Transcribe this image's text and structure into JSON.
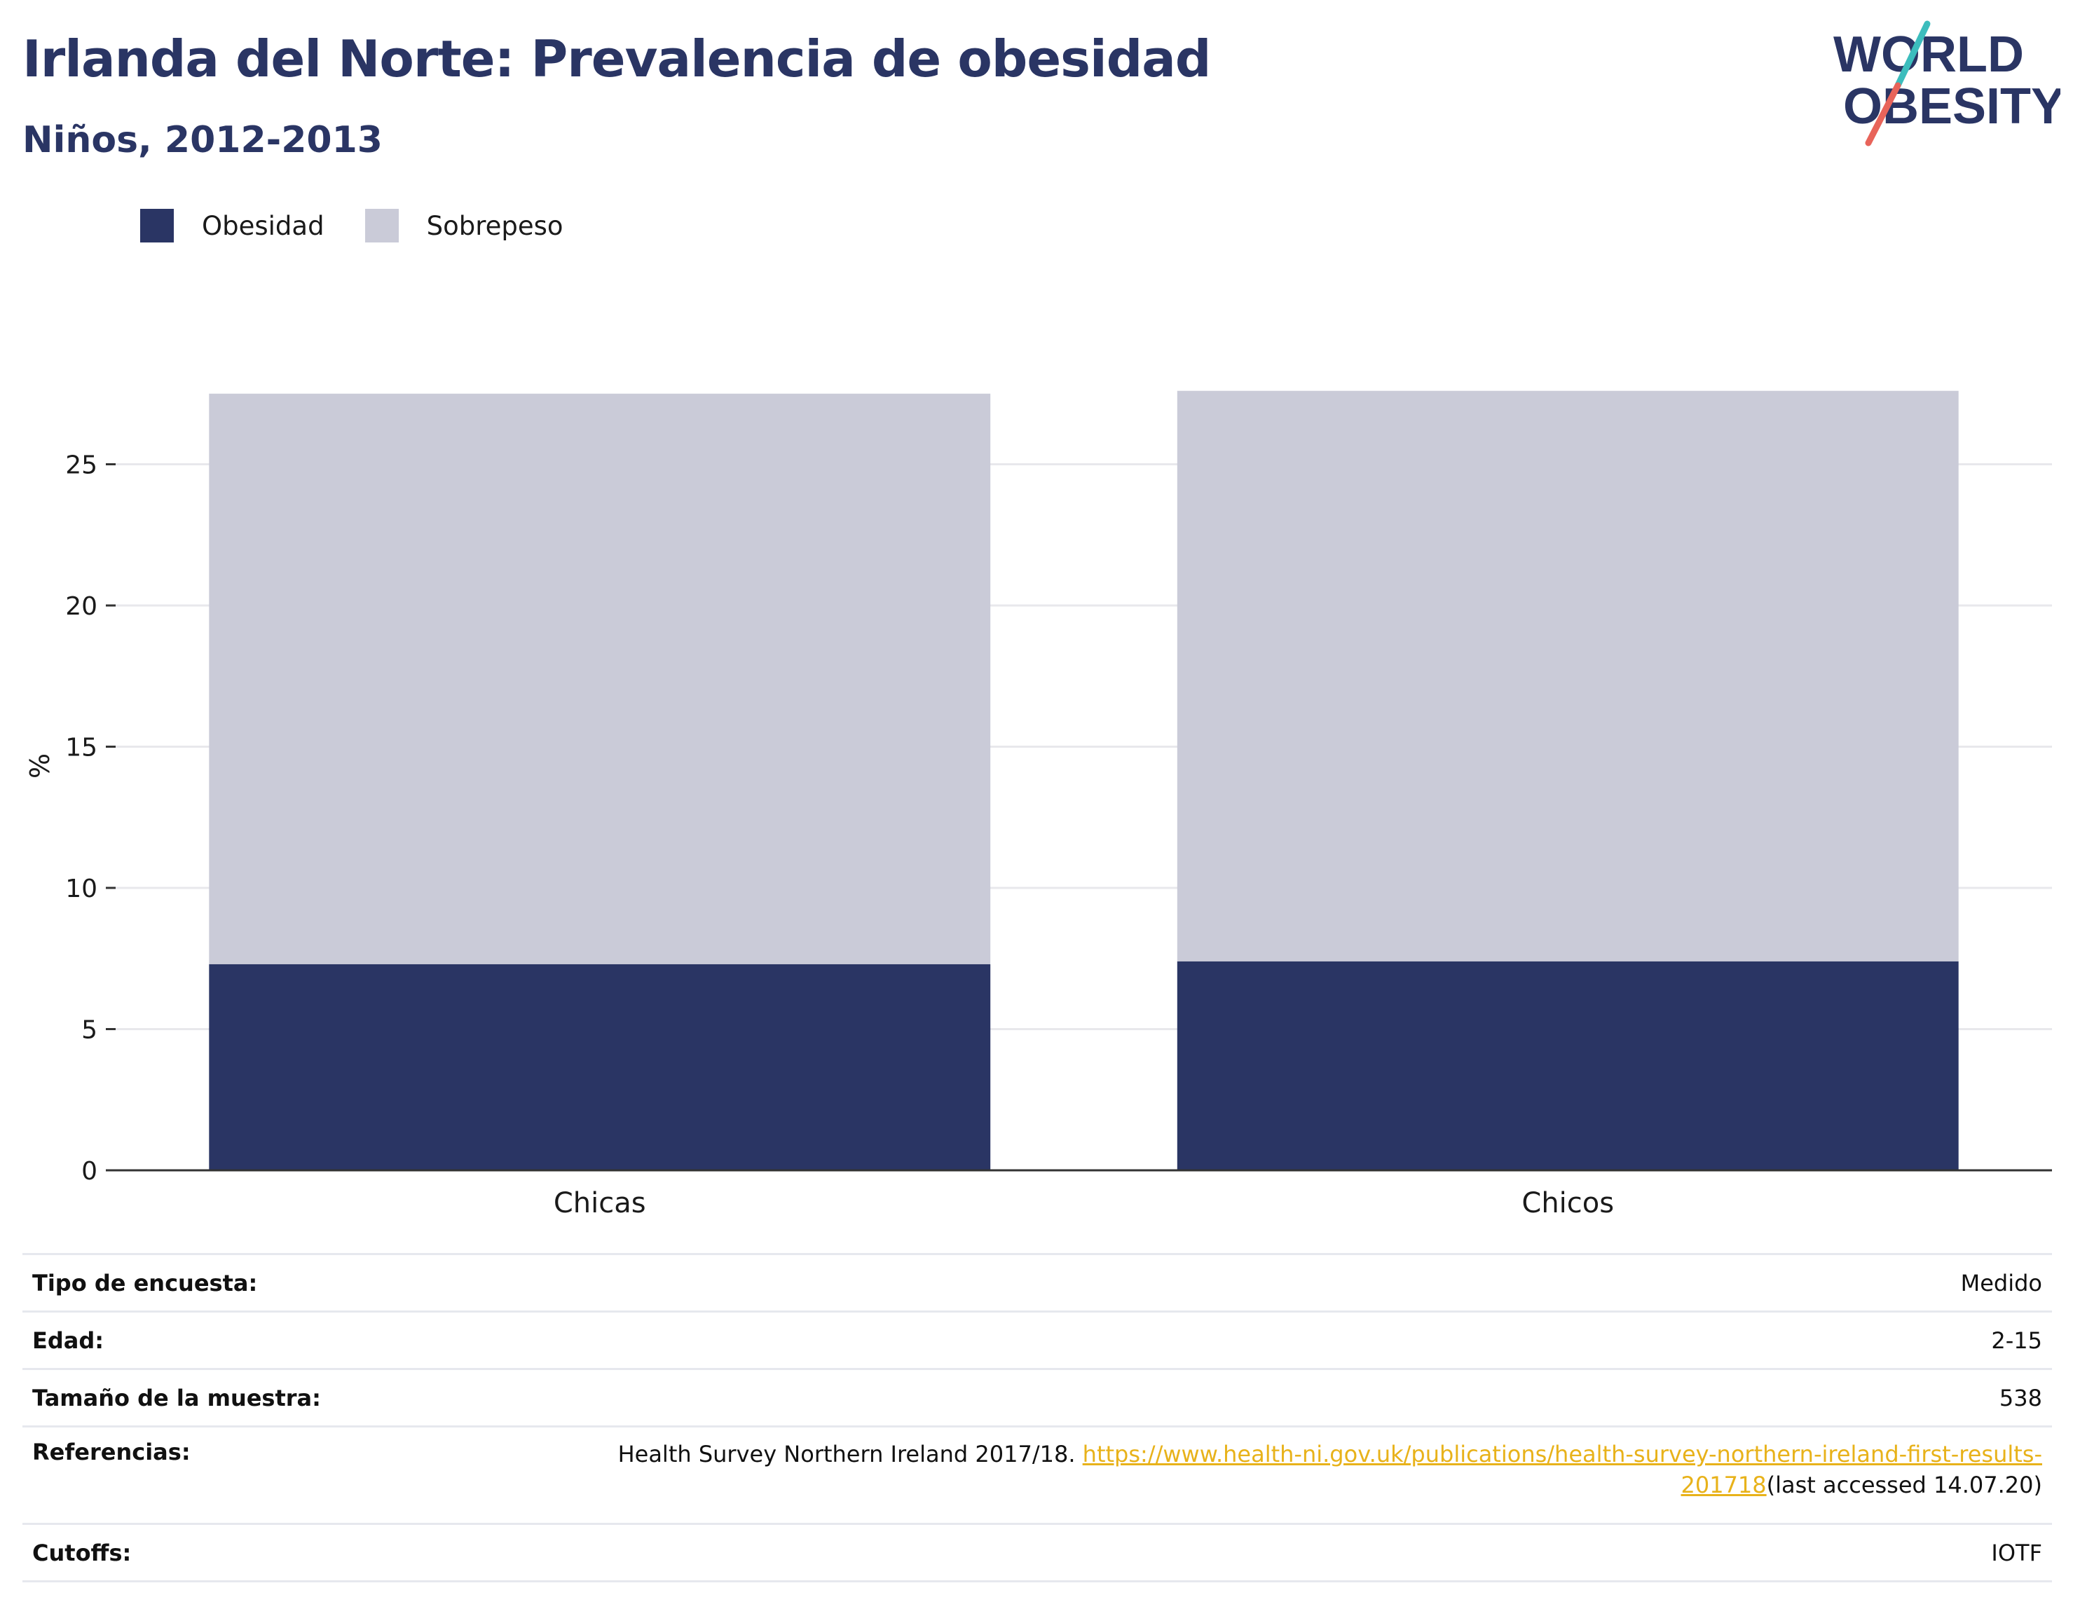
{
  "header": {
    "title": "Irlanda del Norte: Prevalencia de obesidad",
    "subtitle": "Niños, 2012-2013"
  },
  "logo": {
    "line1": "WORLD",
    "line2": "OBESITY",
    "accent_teal": "#3cbdbd",
    "accent_red": "#e8645a",
    "text_color": "#2a3564"
  },
  "legend": {
    "items": [
      {
        "label": "Obesidad",
        "color": "#2a3564"
      },
      {
        "label": "Sobrepeso",
        "color": "#cacbd8"
      }
    ]
  },
  "chart_data": {
    "type": "bar",
    "stacked": true,
    "categories": [
      "Chicas",
      "Chicos"
    ],
    "series": [
      {
        "name": "Obesidad",
        "color": "#2a3564",
        "values": [
          7.3,
          7.4
        ]
      },
      {
        "name": "Sobrepeso",
        "color": "#cacbd8",
        "values": [
          20.2,
          20.2
        ]
      }
    ],
    "ylabel": "%",
    "xlabel": "",
    "ylim": [
      0,
      27.5
    ],
    "yticks": [
      0,
      5,
      10,
      15,
      20,
      25
    ],
    "grid": true,
    "legend_position": "top-left"
  },
  "info": {
    "rows": [
      {
        "key": "Tipo de encuesta:",
        "value": "Medido"
      },
      {
        "key": "Edad:",
        "value": "2-15"
      },
      {
        "key": "Tamaño de la muestra:",
        "value": "538"
      }
    ],
    "references": {
      "key": "Referencias:",
      "text": "Health Survey Northern Ireland 2017/18. ",
      "link_line1": "https://www.health-ni.gov.uk/publications/health-survey-northern-ireland-first-results-",
      "link_line2": "201718",
      "suffix": "(last accessed 14.07.20)"
    },
    "cutoffs": {
      "key": "Cutoffs:",
      "value": "IOTF"
    }
  }
}
